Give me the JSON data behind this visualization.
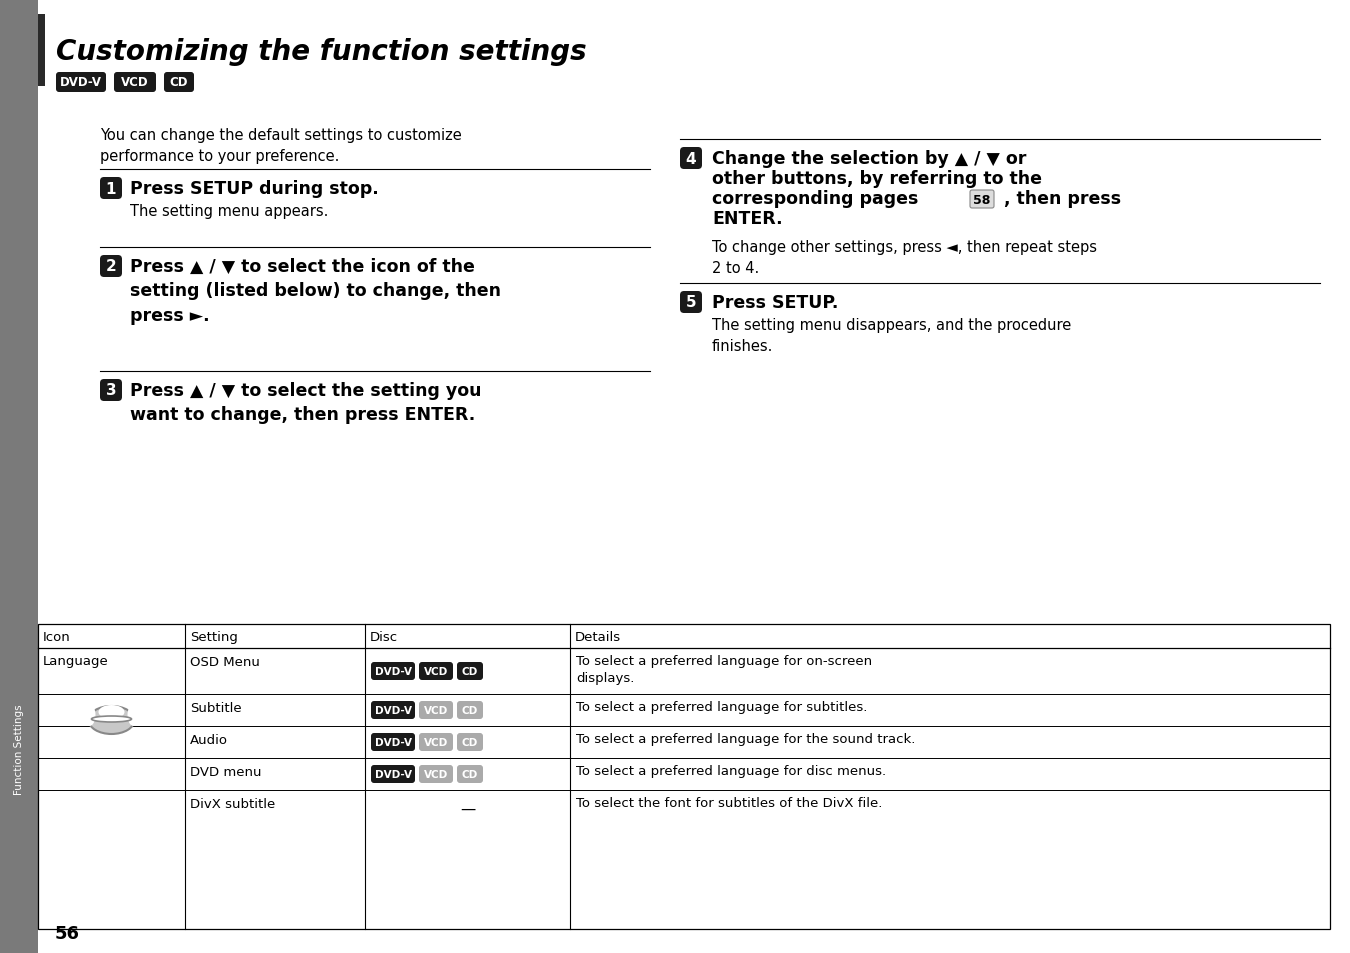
{
  "title": "Customizing the function settings",
  "bg_color": "#ffffff",
  "sidebar_color": "#7a7a7a",
  "page_number": "56",
  "badges_top": [
    {
      "text": "DVD-V",
      "bg": "#1a1a1a",
      "fg": "#ffffff"
    },
    {
      "text": "VCD",
      "bg": "#1a1a1a",
      "fg": "#ffffff"
    },
    {
      "text": "CD",
      "bg": "#1a1a1a",
      "fg": "#ffffff"
    }
  ],
  "intro_text": "You can change the default settings to customize\nperformance to your preference.",
  "table_headers": [
    "Icon",
    "Setting",
    "Disc",
    "Details"
  ],
  "table_rows": [
    {
      "setting": "OSD Menu",
      "disc_badges": [
        {
          "text": "DVD-V",
          "bg": "#1a1a1a",
          "fg": "#ffffff"
        },
        {
          "text": "VCD",
          "bg": "#1a1a1a",
          "fg": "#ffffff"
        },
        {
          "text": "CD",
          "bg": "#1a1a1a",
          "fg": "#ffffff"
        }
      ],
      "disc_dash": false,
      "details": "To select a preferred language for on-screen\ndisplays."
    },
    {
      "setting": "Subtitle",
      "disc_badges": [
        {
          "text": "DVD-V",
          "bg": "#1a1a1a",
          "fg": "#ffffff"
        },
        {
          "text": "VCD",
          "bg": "#aaaaaa",
          "fg": "#ffffff"
        },
        {
          "text": "CD",
          "bg": "#aaaaaa",
          "fg": "#ffffff"
        }
      ],
      "disc_dash": false,
      "details": "To select a preferred language for subtitles."
    },
    {
      "setting": "Audio",
      "disc_badges": [
        {
          "text": "DVD-V",
          "bg": "#1a1a1a",
          "fg": "#ffffff"
        },
        {
          "text": "VCD",
          "bg": "#aaaaaa",
          "fg": "#ffffff"
        },
        {
          "text": "CD",
          "bg": "#aaaaaa",
          "fg": "#ffffff"
        }
      ],
      "disc_dash": false,
      "details": "To select a preferred language for the sound track."
    },
    {
      "setting": "DVD menu",
      "disc_badges": [
        {
          "text": "DVD-V",
          "bg": "#1a1a1a",
          "fg": "#ffffff"
        },
        {
          "text": "VCD",
          "bg": "#aaaaaa",
          "fg": "#ffffff"
        },
        {
          "text": "CD",
          "bg": "#aaaaaa",
          "fg": "#ffffff"
        }
      ],
      "disc_dash": false,
      "details": "To select a preferred language for disc menus."
    },
    {
      "setting": "DivX subtitle",
      "disc_badges": [],
      "disc_dash": true,
      "details": "To select the font for subtitles of the DivX file."
    }
  ]
}
